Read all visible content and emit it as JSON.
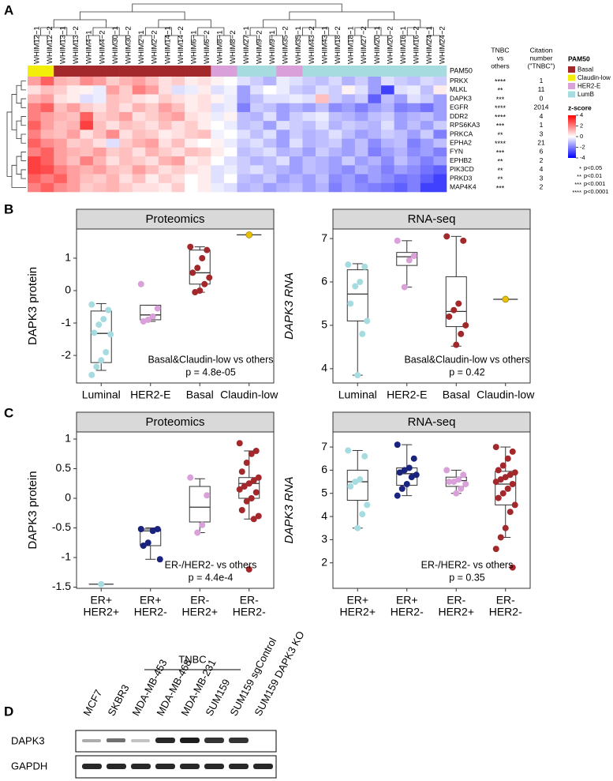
{
  "panel_labels": [
    "A",
    "B",
    "C",
    "D"
  ],
  "chart_data": [
    {
      "type": "heatmap",
      "columns": [
        "WHIM12−1",
        "WHIM12−2",
        "WHIM13−1",
        "WHIM13−2",
        "WHIM4−1",
        "WHIM4−2",
        "WHIM30−1",
        "WHIM30−2",
        "WHIM2−1",
        "WHIM2−2",
        "WHIM14−1",
        "WHIM14−2",
        "WHIM6−1",
        "WHIM6−2",
        "WHIM8−1",
        "WHIM8−2",
        "WHIM27−1",
        "WHIM9−2",
        "WHIM9−1",
        "WHIM35−2",
        "WHIM35−1",
        "WHIM43−2",
        "WHIM43−1",
        "WHIM18−2",
        "WHIM18−1",
        "WHIM27−2",
        "WHIM20−1",
        "WHIM20−2",
        "WHIM16−1",
        "WHIM16−2",
        "WHIM24−1",
        "WHIM24−2"
      ],
      "rows": [
        "PRKX",
        "MLKL",
        "DAPK3",
        "EGFR",
        "DDR2",
        "RPS6KA3",
        "PRKCA",
        "EPHA2",
        "FYN",
        "EPHB2",
        "PIK3CD",
        "PRKD3",
        "MAP4K4"
      ],
      "values": [
        [
          1.5,
          2.5,
          1.2,
          1.0,
          1.8,
          1.5,
          0.8,
          1.2,
          1.5,
          1.0,
          0.5,
          0.8,
          0.3,
          0.5,
          0.2,
          0.0,
          -0.5,
          -0.8,
          -1.2,
          -0.3,
          -0.5,
          -0.8,
          -1.0,
          -0.6,
          -1.2,
          -0.8,
          -1.5,
          -0.5,
          -0.8,
          -1.0,
          -0.6,
          -0.8
        ],
        [
          0.5,
          1.0,
          0.8,
          0.3,
          0.2,
          -0.3,
          1.5,
          0.8,
          2.0,
          1.5,
          0.5,
          -0.5,
          -0.3,
          0.3,
          -0.5,
          -0.2,
          -1.5,
          -0.5,
          0.0,
          -0.3,
          -0.8,
          -1.0,
          -0.5,
          -0.8,
          0.2,
          -0.5,
          -1.5,
          -3.0,
          -0.5,
          -0.3,
          -1.0,
          0.3
        ],
        [
          1.2,
          1.5,
          0.5,
          0.3,
          -0.5,
          -0.3,
          1.0,
          0.8,
          0.5,
          0.3,
          0.8,
          0.5,
          0.3,
          0.5,
          0.2,
          -0.3,
          -1.5,
          -1.0,
          -0.5,
          -0.5,
          -0.3,
          -0.5,
          1.0,
          -0.8,
          -1.2,
          -0.8,
          -2.5,
          -1.0,
          -1.5,
          -0.5,
          -0.8,
          -1.5
        ],
        [
          2.0,
          2.5,
          1.0,
          1.5,
          0.8,
          0.5,
          1.0,
          0.5,
          1.2,
          0.8,
          1.5,
          1.0,
          0.3,
          0.5,
          -0.5,
          -0.3,
          -2.0,
          -0.8,
          -1.0,
          -1.5,
          -1.2,
          -1.5,
          -1.0,
          -1.8,
          -1.5,
          -2.0,
          -1.5,
          -1.2,
          -2.0,
          -1.8,
          -2.2,
          -1.5
        ],
        [
          2.0,
          1.5,
          1.2,
          1.0,
          2.5,
          0.8,
          1.0,
          1.5,
          0.5,
          0.8,
          1.2,
          1.5,
          0.5,
          0.3,
          -0.3,
          0.2,
          -1.0,
          -1.2,
          -0.5,
          -1.5,
          -0.8,
          -0.5,
          -0.3,
          -1.0,
          -1.2,
          -1.5,
          -1.0,
          -0.8,
          -1.5,
          -1.2,
          -1.0,
          -1.5
        ],
        [
          2.5,
          1.5,
          1.0,
          1.2,
          3.0,
          1.0,
          0.5,
          1.0,
          0.8,
          0.5,
          1.0,
          0.5,
          0.8,
          0.3,
          0.0,
          -0.3,
          -1.0,
          -0.8,
          -1.5,
          -0.5,
          -0.8,
          -1.0,
          -0.5,
          -1.2,
          -0.8,
          -1.0,
          -1.2,
          -0.5,
          -1.5,
          -1.0,
          -1.5,
          -0.8
        ],
        [
          2.0,
          1.2,
          1.0,
          1.5,
          0.5,
          1.0,
          1.8,
          0.5,
          1.0,
          0.8,
          0.3,
          0.5,
          0.8,
          1.0,
          -0.2,
          0.0,
          -0.5,
          -1.0,
          -0.5,
          -1.5,
          -0.8,
          -1.2,
          -1.0,
          -0.5,
          -1.0,
          -1.5,
          -1.2,
          -0.8,
          -1.0,
          -1.5,
          -0.8,
          -2.0
        ],
        [
          2.5,
          1.8,
          1.5,
          0.8,
          1.0,
          0.5,
          -0.5,
          0.8,
          1.2,
          1.5,
          0.5,
          1.0,
          0.3,
          0.0,
          0.2,
          -0.3,
          -0.8,
          -0.5,
          -1.0,
          -1.5,
          -0.5,
          -1.2,
          -1.0,
          -0.8,
          -1.5,
          -1.0,
          -1.8,
          -1.2,
          -1.0,
          -2.0,
          -1.5,
          -1.0
        ],
        [
          2.0,
          2.5,
          1.5,
          1.2,
          1.0,
          1.5,
          0.8,
          1.0,
          0.5,
          1.2,
          0.8,
          0.5,
          1.0,
          0.8,
          0.3,
          0.0,
          -1.0,
          -0.8,
          -0.5,
          -1.2,
          -1.0,
          -1.5,
          -0.8,
          -1.2,
          -1.5,
          -1.0,
          -2.0,
          -1.5,
          -1.2,
          -1.8,
          -1.5,
          -2.0
        ],
        [
          3.0,
          2.5,
          1.5,
          1.0,
          2.0,
          1.2,
          0.5,
          1.0,
          0.8,
          0.5,
          1.2,
          1.5,
          0.3,
          0.5,
          0.0,
          -0.5,
          -0.8,
          -1.2,
          -1.0,
          -0.5,
          -1.5,
          -1.0,
          -1.2,
          -1.5,
          -0.8,
          -1.5,
          -1.2,
          -1.8,
          -1.0,
          -1.5,
          -2.0,
          -1.5
        ],
        [
          3.0,
          2.8,
          2.0,
          1.5,
          1.2,
          1.5,
          1.0,
          0.8,
          1.5,
          1.0,
          0.5,
          0.8,
          0.5,
          0.3,
          -0.5,
          -0.3,
          -0.8,
          -0.5,
          -1.0,
          -1.2,
          -1.5,
          -1.0,
          -1.2,
          -1.5,
          -1.8,
          -1.2,
          -1.5,
          -2.0,
          -1.5,
          -1.8,
          -2.2,
          -2.5
        ],
        [
          2.5,
          2.0,
          2.5,
          1.5,
          1.0,
          0.8,
          1.2,
          0.5,
          1.0,
          0.3,
          0.8,
          0.5,
          0.0,
          0.3,
          -0.5,
          0.0,
          -1.0,
          -1.2,
          -0.8,
          -1.5,
          -1.2,
          -1.5,
          -1.0,
          -1.8,
          -1.5,
          -2.0,
          -1.5,
          -1.8,
          -2.2,
          -2.0,
          -2.5,
          -3.0
        ],
        [
          2.0,
          2.5,
          1.8,
          1.5,
          0.8,
          1.0,
          1.2,
          0.8,
          0.5,
          0.5,
          0.3,
          0.8,
          0.0,
          0.3,
          -0.3,
          -0.5,
          -1.2,
          -1.0,
          -1.5,
          -1.2,
          -1.0,
          -1.5,
          -1.2,
          -2.0,
          -1.5,
          -1.8,
          -2.0,
          -2.2,
          -2.5,
          -2.0,
          -3.0,
          -3.0
        ]
      ],
      "annotation_title": "PAM50",
      "column_classes": [
        "Claudin-low",
        "Claudin-low",
        "Basal",
        "Basal",
        "Basal",
        "Basal",
        "Basal",
        "Basal",
        "Basal",
        "Basal",
        "Basal",
        "Basal",
        "Basal",
        "Basal",
        "HER2-E",
        "HER2-E",
        "LumB",
        "LumB",
        "LumB",
        "HER2-E",
        "HER2-E",
        "LumB",
        "LumB",
        "LumB",
        "LumB",
        "LumB",
        "LumB",
        "LumB",
        "LumB",
        "LumB",
        "LumB",
        "LumB"
      ],
      "legend_title": "PAM50",
      "classes": [
        {
          "name": "Basal",
          "color": "#a3282c"
        },
        {
          "name": "Claudin-low",
          "color": "#f2ee0a"
        },
        {
          "name": "HER2-E",
          "color": "#d9a0d9"
        },
        {
          "name": "LumB",
          "color": "#a6dce0"
        }
      ],
      "highlight_rows": [
        "DAPK3"
      ],
      "highlight_color": "#d0262b",
      "tnbc_vs_others": {
        "title": [
          "TNBC",
          "vs",
          "others"
        ],
        "values": [
          "****",
          "**",
          "***",
          "****",
          "****",
          "***",
          "**",
          "****",
          "***",
          "**",
          "**",
          "**",
          "***"
        ]
      },
      "citation": {
        "title": [
          "Citation",
          "number",
          "(\"TNBC\")"
        ],
        "values": [
          1,
          11,
          0,
          2014,
          4,
          1,
          3,
          21,
          6,
          2,
          4,
          3,
          2
        ]
      },
      "colorbar": {
        "title": "z-score",
        "zlim": [
          -4,
          4
        ],
        "ticks": [
          4,
          2,
          0,
          -2,
          -4
        ],
        "colors": [
          "#0000ff",
          "#ffffff",
          "#ff0000"
        ]
      },
      "significance_legend": [
        {
          "symbol": "*",
          "label": "p<0.05"
        },
        {
          "symbol": "**",
          "label": "p<0.01"
        },
        {
          "symbol": "***",
          "label": "p<0.001"
        },
        {
          "symbol": "****",
          "label": "p<0.0001"
        }
      ]
    },
    {
      "type": "box",
      "title": "Proteomics",
      "ylabel": "DAPK3 protein",
      "ylabel_italic": false,
      "categories": [
        "Luminal",
        "HER2-E",
        "Basal",
        "Claudin-low"
      ],
      "ylim": [
        -2.85,
        1.9
      ],
      "yticks": [
        -2,
        -1,
        0,
        1
      ],
      "groups": [
        {
          "color": "#a6dce0",
          "points": [
            -0.43,
            -0.6,
            -0.88,
            -1.05,
            -1.3,
            -1.35,
            -1.9,
            -2.15,
            -2.35,
            -2.6
          ],
          "box": {
            "whisker_low": -2.46,
            "q1": -2.22,
            "median": -1.32,
            "q3": -0.63,
            "whisker_high": -0.4
          }
        },
        {
          "color": "#d9a0d9",
          "points": [
            0.2,
            -0.55,
            -0.8,
            -0.9,
            -0.95
          ],
          "box": {
            "whisker_low": -0.95,
            "q1": -0.9,
            "median": -0.75,
            "q3": -0.45,
            "whisker_high": -0.45
          }
        },
        {
          "color": "#a3282c",
          "points": [
            1.35,
            1.25,
            1.0,
            0.7,
            0.55,
            0.4,
            0.2,
            0.0,
            -0.05
          ],
          "box": {
            "whisker_low": -0.05,
            "q1": 0.2,
            "median": 0.55,
            "q3": 1.25,
            "whisker_high": 1.35
          }
        },
        {
          "color": "#e8c000",
          "points": [
            1.72
          ],
          "box": {
            "median": 1.72
          }
        }
      ],
      "annotation": [
        "Basal&Claudin-low vs others",
        "p = 4.8e-05"
      ]
    },
    {
      "type": "box",
      "title": "RNA-seq",
      "ylabel": "DAPK3 RNA",
      "ylabel_italic": true,
      "categories": [
        "Luminal",
        "HER2-E",
        "Basal",
        "Claudin-low"
      ],
      "ylim": [
        3.67,
        7.22
      ],
      "yticks": [
        4,
        5,
        6,
        7
      ],
      "groups": [
        {
          "color": "#a6dce0",
          "points": [
            6.4,
            6.35,
            6.0,
            5.9,
            5.5,
            5.1,
            4.8,
            3.85
          ],
          "box": {
            "whisker_low": 3.85,
            "q1": 5.1,
            "median": 5.72,
            "q3": 6.28,
            "whisker_high": 6.42
          }
        },
        {
          "color": "#d9a0d9",
          "points": [
            6.95,
            6.6,
            6.5,
            5.88
          ],
          "box": {
            "whisker_low": 5.88,
            "q1": 6.38,
            "median": 6.58,
            "q3": 6.68,
            "whisker_high": 6.95
          }
        },
        {
          "color": "#a3282c",
          "points": [
            7.05,
            6.95,
            5.5,
            5.35,
            5.2,
            5.0,
            4.8,
            4.55
          ],
          "box": {
            "whisker_low": 4.52,
            "q1": 4.97,
            "median": 5.32,
            "q3": 6.12,
            "whisker_high": 7.05
          }
        },
        {
          "color": "#e8c000",
          "points": [
            5.6
          ],
          "box": {
            "median": 5.6
          }
        }
      ],
      "annotation": [
        "Basal&Claudin-low vs others",
        "p = 0.42"
      ]
    },
    {
      "type": "box",
      "title": "Proteomics",
      "ylabel": "DAPK3 protein",
      "ylabel_italic": false,
      "categories": [
        [
          "ER+",
          "HER2+"
        ],
        [
          "ER+",
          "HER2-"
        ],
        [
          "ER-",
          "HER2+"
        ],
        [
          "ER-",
          "HER2-"
        ]
      ],
      "ylim": [
        -1.52,
        1.12
      ],
      "yticks": [
        -1.5,
        -1,
        -0.5,
        0,
        0.5,
        1
      ],
      "groups": [
        {
          "color": "#a6dce0",
          "points": [
            -1.45
          ],
          "box": {
            "median": -1.45
          }
        },
        {
          "color": "#1a237e",
          "points": [
            -0.52,
            -0.52,
            -0.55,
            -0.75,
            -0.8,
            -1.03
          ],
          "box": {
            "whisker_low": -1.03,
            "q1": -0.8,
            "median": -0.55,
            "q3": -0.52,
            "whisker_high": -0.5
          }
        },
        {
          "color": "#d9a0d9",
          "points": [
            0.35,
            0.05,
            -0.45,
            -0.58
          ],
          "box": {
            "whisker_low": -0.58,
            "q1": -0.4,
            "median": -0.15,
            "q3": 0.2,
            "whisker_high": 0.33
          }
        },
        {
          "color": "#a3282c",
          "points": [
            0.93,
            0.8,
            0.75,
            0.6,
            0.45,
            0.35,
            0.3,
            0.25,
            0.2,
            0.15,
            0.1,
            0.0,
            -0.05,
            -0.2,
            -0.3,
            -0.35,
            -1.2
          ],
          "box": {
            "whisker_low": -0.35,
            "q1": 0.0,
            "median": 0.25,
            "q3": 0.35,
            "whisker_high": 0.8
          }
        }
      ],
      "annotation": [
        "ER-/HER2- vs others",
        "p = 4.4e-4"
      ]
    },
    {
      "type": "box",
      "title": "RNA-seq",
      "ylabel": "DAPK3 RNA",
      "ylabel_italic": true,
      "categories": [
        [
          "ER+",
          "HER2+"
        ],
        [
          "ER+",
          "HER2-"
        ],
        [
          "ER-",
          "HER2+"
        ],
        [
          "ER-",
          "HER2-"
        ]
      ],
      "ylim": [
        0.9,
        7.65
      ],
      "yticks": [
        2,
        3,
        4,
        5,
        6,
        7
      ],
      "groups": [
        {
          "color": "#a6dce0",
          "points": [
            6.85,
            6.6,
            5.6,
            5.5,
            5.3,
            4.5,
            4.1,
            3.5
          ],
          "box": {
            "whisker_low": 3.5,
            "q1": 4.7,
            "median": 5.5,
            "q3": 6.0,
            "whisker_high": 6.85
          }
        },
        {
          "color": "#1a237e",
          "points": [
            7.1,
            6.5,
            6.1,
            6.0,
            5.9,
            5.8,
            5.7,
            5.4,
            5.2,
            4.9
          ],
          "box": {
            "whisker_low": 4.9,
            "q1": 5.35,
            "median": 5.85,
            "q3": 6.1,
            "whisker_high": 7.1
          }
        },
        {
          "color": "#d9a0d9",
          "points": [
            6.0,
            5.8,
            5.6,
            5.5,
            5.5,
            5.4,
            5.2,
            5.0
          ],
          "box": {
            "whisker_low": 5.0,
            "q1": 5.3,
            "median": 5.55,
            "q3": 5.7,
            "whisker_high": 6.0
          }
        },
        {
          "color": "#a3282c",
          "points": [
            7.0,
            6.8,
            6.5,
            6.2,
            6.0,
            5.9,
            5.8,
            5.7,
            5.6,
            5.5,
            5.4,
            5.2,
            5.0,
            4.8,
            4.5,
            4.2,
            3.5,
            3.1,
            2.6,
            1.8
          ],
          "box": {
            "whisker_low": 3.1,
            "q1": 4.5,
            "median": 5.4,
            "q3": 5.95,
            "whisker_high": 7.0
          }
        }
      ],
      "annotation": [
        "ER-/HER2- vs others",
        "p = 0.35"
      ]
    }
  ],
  "western_blot": {
    "group_label": "TNBC",
    "lanes": [
      {
        "name": "MCF7",
        "color": "#000000"
      },
      {
        "name": "SKBR3",
        "color": "#000000"
      },
      {
        "name": "MDA-MB-453",
        "color": "#d0262b"
      },
      {
        "name": "MDA-MB-468",
        "color": "#d0262b"
      },
      {
        "name": "MDA-MB-231",
        "color": "#d0262b"
      },
      {
        "name": "SUM159",
        "color": "#d0262b"
      },
      {
        "name": "SUM159 sgControl",
        "color": "#000000"
      },
      {
        "name": "SUM159 DAPK3 KO",
        "color": "#000000"
      }
    ],
    "rows": [
      "DAPK3",
      "GAPDH"
    ]
  }
}
